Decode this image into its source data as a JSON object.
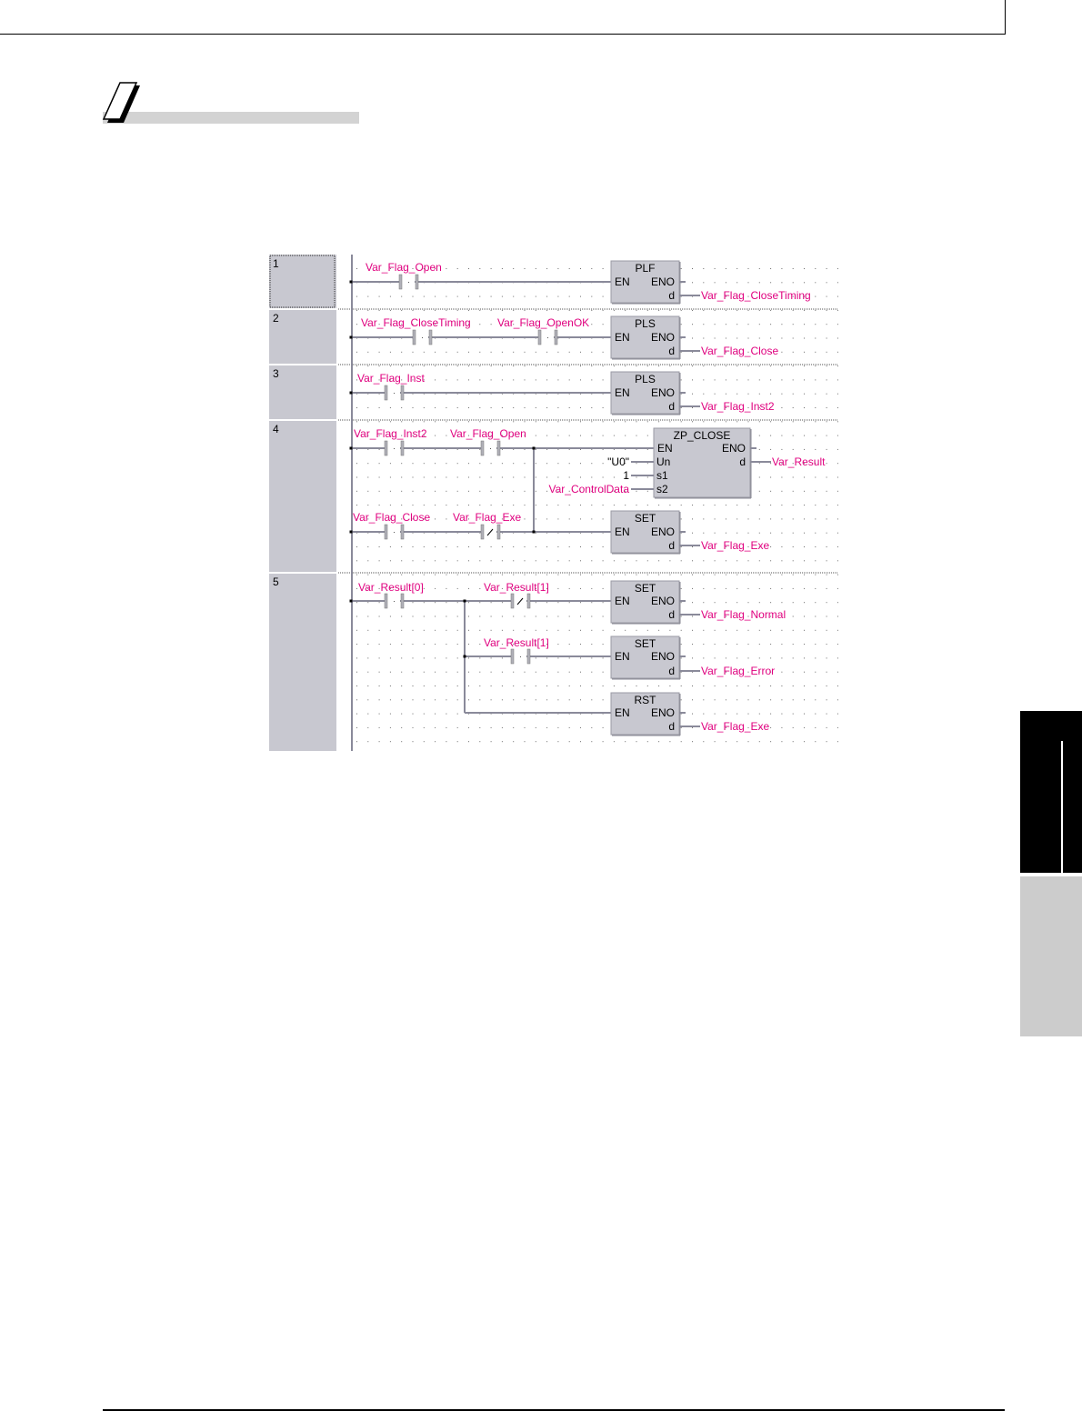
{
  "colors": {
    "label": "#e0007f",
    "box_fill": "#c8c8d0",
    "wire": "#8a8a9a",
    "rung_column": "#c8c8d0",
    "tab_dark": "#000000",
    "tab_light": "#cccccc"
  },
  "note_icon": "note-page-icon",
  "diagram": {
    "rungs": [
      {
        "number": "1",
        "contacts": [
          {
            "label": "Var_Flag_Open",
            "type": "normally-open"
          }
        ],
        "instructions": [
          {
            "name": "PLF",
            "en": "EN",
            "eno": "ENO",
            "dest": "d",
            "output": "Var_Flag_CloseTiming"
          }
        ]
      },
      {
        "number": "2",
        "contacts": [
          {
            "label": "Var_Flag_CloseTiming",
            "type": "normally-open"
          },
          {
            "label": "Var_Flag_OpenOK",
            "type": "normally-open"
          }
        ],
        "instructions": [
          {
            "name": "PLS",
            "en": "EN",
            "eno": "ENO",
            "dest": "d",
            "output": "Var_Flag_Close"
          }
        ]
      },
      {
        "number": "3",
        "contacts": [
          {
            "label": "Var_Flag_Inst",
            "type": "normally-open"
          }
        ],
        "instructions": [
          {
            "name": "PLS",
            "en": "EN",
            "eno": "ENO",
            "dest": "d",
            "output": "Var_Flag_Inst2"
          }
        ]
      },
      {
        "number": "4",
        "contacts": [
          {
            "label": "Var_Flag_Inst2",
            "type": "normally-open"
          },
          {
            "label": "Var_Flag_Open",
            "type": "normally-open"
          },
          {
            "label": "Var_Flag_Close",
            "type": "normally-open"
          },
          {
            "label": "Var_Flag_Exe",
            "type": "normally-closed"
          }
        ],
        "instructions": [
          {
            "name": "ZP_CLOSE",
            "en": "EN",
            "eno": "ENO",
            "dest": "d",
            "output": "Var_Result",
            "inputs": [
              {
                "pin": "Un",
                "value": "\"U0\""
              },
              {
                "pin": "s1",
                "value": "1"
              },
              {
                "pin": "s2",
                "value": "Var_ControlData"
              }
            ]
          },
          {
            "name": "SET",
            "en": "EN",
            "eno": "ENO",
            "dest": "d",
            "output": "Var_Flag_Exe"
          }
        ]
      },
      {
        "number": "5",
        "contacts": [
          {
            "label": "Var_Result[0]",
            "type": "normally-open"
          },
          {
            "label": "Var_Result[1]",
            "type": "normally-closed"
          },
          {
            "label": "Var_Result[1]",
            "type": "normally-open"
          }
        ],
        "instructions": [
          {
            "name": "SET",
            "en": "EN",
            "eno": "ENO",
            "dest": "d",
            "output": "Var_Flag_Normal"
          },
          {
            "name": "SET",
            "en": "EN",
            "eno": "ENO",
            "dest": "d",
            "output": "Var_Flag_Error"
          },
          {
            "name": "RST",
            "en": "EN",
            "eno": "ENO",
            "dest": "d",
            "output": "Var_Flag_Exe"
          }
        ]
      }
    ]
  }
}
